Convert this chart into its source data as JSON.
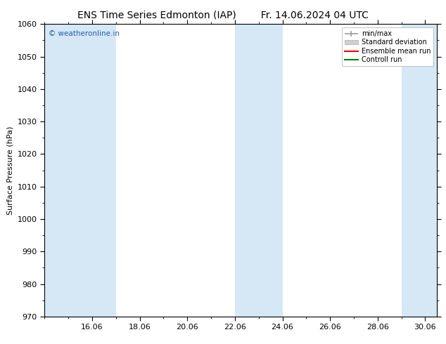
{
  "title_left": "ENS Time Series Edmonton (IAP)",
  "title_right": "Fr. 14.06.2024 04 UTC",
  "ylabel": "Surface Pressure (hPa)",
  "ylim": [
    970,
    1060
  ],
  "yticks": [
    970,
    980,
    990,
    1000,
    1010,
    1020,
    1030,
    1040,
    1050,
    1060
  ],
  "xtick_labels": [
    "16.06",
    "18.06",
    "20.06",
    "22.06",
    "24.06",
    "26.06",
    "28.06",
    "30.06"
  ],
  "xtick_days": [
    2,
    4,
    6,
    8,
    10,
    12,
    14,
    16
  ],
  "shaded_bands": [
    {
      "x_start_day": 0,
      "x_end_day": 3
    },
    {
      "x_start_day": 8,
      "x_end_day": 10
    },
    {
      "x_start_day": 15,
      "x_end_day": 16.5
    }
  ],
  "band_color": "#d6e8f5",
  "background_color": "#ffffff",
  "plot_bg_color": "#ffffff",
  "watermark_text": "© weatheronline.in",
  "watermark_color": "#1a5eb8",
  "legend_labels": [
    "min/max",
    "Standard deviation",
    "Ensemble mean run",
    "Controll run"
  ],
  "legend_colors_line": [
    "#999999",
    "#cccccc",
    "#ff0000",
    "#008000"
  ],
  "tick_color": "#000000",
  "spine_color": "#000000",
  "font_size": 8,
  "title_font_size": 10,
  "xlim": [
    0,
    16.5
  ]
}
